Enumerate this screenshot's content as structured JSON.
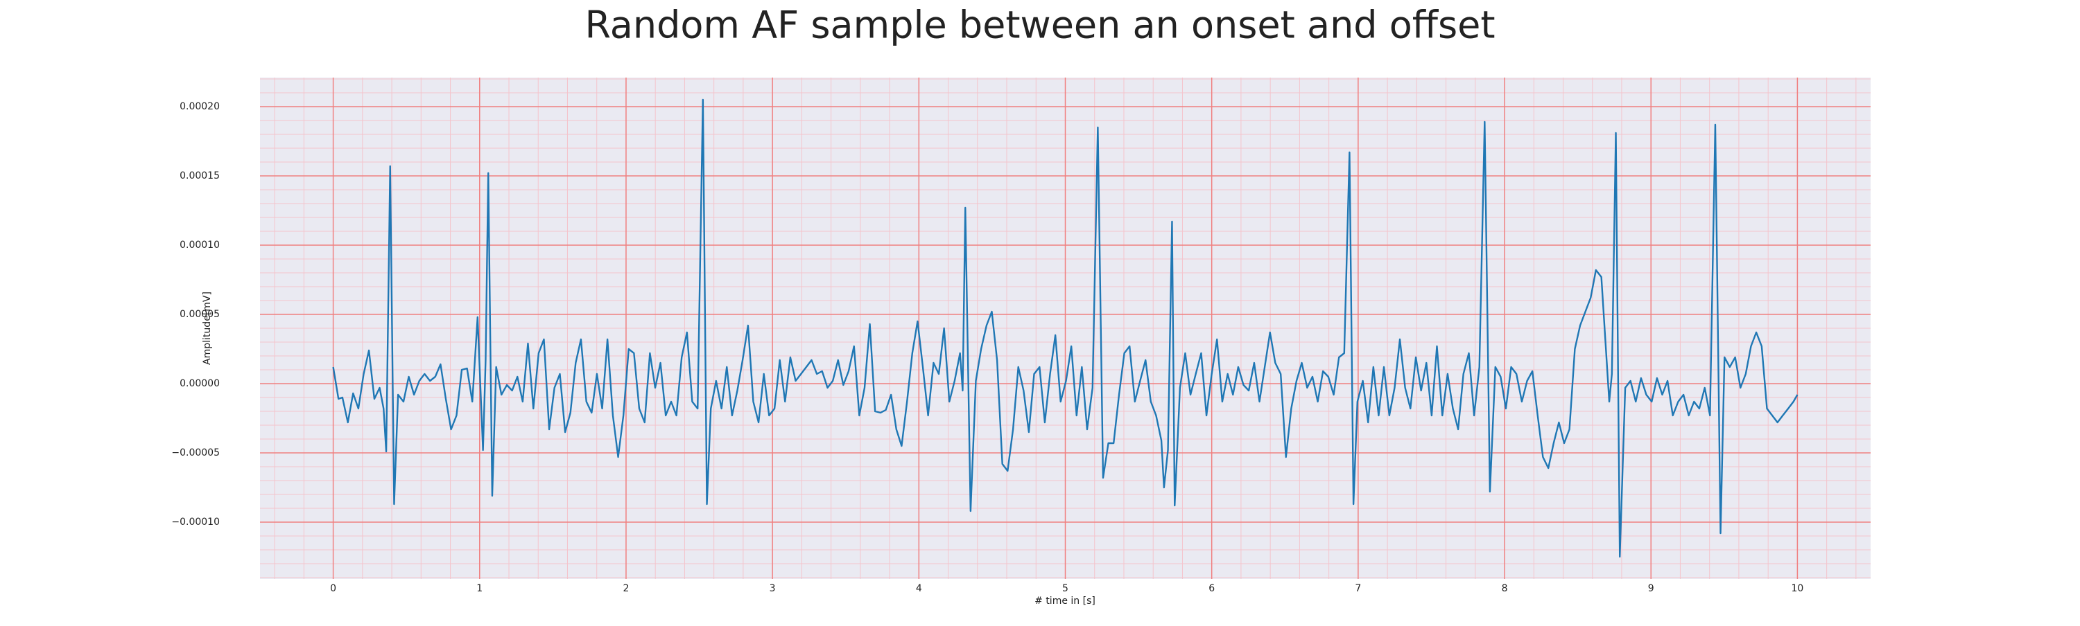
{
  "chart_data": {
    "type": "line",
    "title": "Random AF sample between an onset and offset",
    "xlabel": "# time in [s]",
    "ylabel": "Amplitude[mV]",
    "color": "#1f77b4",
    "grid": true,
    "background": "#eaeaf2",
    "grid_color": "#f08080",
    "minor_grid_color": "#f4c4cc",
    "xlim": [
      -0.5,
      10.5
    ],
    "ylim": [
      -0.000141,
      0.000221
    ],
    "xticks": [
      0,
      1,
      2,
      3,
      4,
      5,
      6,
      7,
      8,
      9,
      10
    ],
    "yticks": [
      {
        "value": -0.0001,
        "label": "−0.00010"
      },
      {
        "value": -5e-05,
        "label": "−0.00005"
      },
      {
        "value": 0,
        "label": "0.00000"
      },
      {
        "value": 5e-05,
        "label": "0.00005"
      },
      {
        "value": 0.0001,
        "label": "0.00010"
      },
      {
        "value": 0.00015,
        "label": "0.00015"
      },
      {
        "value": 0.0002,
        "label": "0.00020"
      }
    ],
    "xminorticks": [
      -0.4,
      -0.2,
      0.2,
      0.4,
      0.6,
      0.8,
      1.2,
      1.4,
      1.6,
      1.8,
      2.2,
      2.4,
      2.6,
      2.8,
      3.2,
      3.4,
      3.6,
      3.8,
      4.2,
      4.4,
      4.6,
      4.8,
      5.2,
      5.4,
      5.6,
      5.8,
      6.2,
      6.4,
      6.6,
      6.8,
      7.2,
      7.4,
      7.6,
      7.8,
      8.2,
      8.4,
      8.6,
      8.8,
      9.2,
      9.4,
      9.6,
      9.8,
      10.2,
      10.4
    ],
    "yminorticks": [
      -0.00014,
      -0.00013,
      -0.00012,
      -0.00011,
      -9e-05,
      -8e-05,
      -7e-05,
      -6e-05,
      -4e-05,
      -3e-05,
      -2e-05,
      -1e-05,
      1e-05,
      2e-05,
      3e-05,
      4e-05,
      6e-05,
      7e-05,
      8e-05,
      9e-05,
      0.00011,
      0.00012,
      0.00013,
      0.00014,
      0.00016,
      0.00017,
      0.00018,
      0.00019,
      0.00021,
      0.00022
    ],
    "x": [
      0,
      0.036,
      0.063,
      0.1,
      0.136,
      0.172,
      0.208,
      0.244,
      0.281,
      0.317,
      0.344,
      0.362,
      0.389,
      0.416,
      0.443,
      0.48,
      0.516,
      0.552,
      0.588,
      0.624,
      0.661,
      0.697,
      0.733,
      0.769,
      0.805,
      0.842,
      0.878,
      0.914,
      0.95,
      0.986,
      1.023,
      1.041,
      1.059,
      1.086,
      1.113,
      1.149,
      1.186,
      1.222,
      1.258,
      1.294,
      1.33,
      1.367,
      1.403,
      1.439,
      1.475,
      1.511,
      1.548,
      1.584,
      1.62,
      1.656,
      1.692,
      1.729,
      1.765,
      1.801,
      1.837,
      1.873,
      1.91,
      1.946,
      1.982,
      2.018,
      2.054,
      2.09,
      2.127,
      2.163,
      2.199,
      2.235,
      2.271,
      2.308,
      2.344,
      2.38,
      2.416,
      2.452,
      2.489,
      2.525,
      2.552,
      2.579,
      2.615,
      2.652,
      2.688,
      2.724,
      2.76,
      2.796,
      2.833,
      2.869,
      2.905,
      2.941,
      2.977,
      3.014,
      3.05,
      3.086,
      3.122,
      3.158,
      3.195,
      3.231,
      3.267,
      3.303,
      3.339,
      3.376,
      3.412,
      3.448,
      3.484,
      3.52,
      3.557,
      3.593,
      3.629,
      3.665,
      3.701,
      3.738,
      3.774,
      3.81,
      3.846,
      3.882,
      3.919,
      3.955,
      3.991,
      4.027,
      4.063,
      4.1,
      4.136,
      4.172,
      4.208,
      4.244,
      4.281,
      4.299,
      4.317,
      4.353,
      4.389,
      4.425,
      4.462,
      4.498,
      4.534,
      4.57,
      4.606,
      4.643,
      4.679,
      4.715,
      4.751,
      4.787,
      4.824,
      4.86,
      4.896,
      4.932,
      4.968,
      5.005,
      5.041,
      5.077,
      5.113,
      5.149,
      5.186,
      5.222,
      5.258,
      5.294,
      5.33,
      5.367,
      5.403,
      5.439,
      5.475,
      5.511,
      5.548,
      5.584,
      5.62,
      5.656,
      5.674,
      5.701,
      5.729,
      5.747,
      5.783,
      5.819,
      5.855,
      5.891,
      5.928,
      5.964,
      6.0,
      6.036,
      6.072,
      6.109,
      6.145,
      6.181,
      6.217,
      6.253,
      6.29,
      6.326,
      6.362,
      6.398,
      6.434,
      6.471,
      6.507,
      6.543,
      6.579,
      6.615,
      6.652,
      6.688,
      6.724,
      6.76,
      6.796,
      6.833,
      6.869,
      6.905,
      6.941,
      6.968,
      6.995,
      7.032,
      7.068,
      7.104,
      7.14,
      7.176,
      7.213,
      7.249,
      7.285,
      7.321,
      7.357,
      7.394,
      7.43,
      7.466,
      7.502,
      7.538,
      7.575,
      7.611,
      7.647,
      7.683,
      7.719,
      7.756,
      7.792,
      7.828,
      7.864,
      7.9,
      7.937,
      7.973,
      8.009,
      8.045,
      8.081,
      8.118,
      8.154,
      8.19,
      8.226,
      8.262,
      8.299,
      8.335,
      8.371,
      8.407,
      8.443,
      8.48,
      8.516,
      8.552,
      8.588,
      8.624,
      8.661,
      8.679,
      8.697,
      8.715,
      8.733,
      8.76,
      8.787,
      8.824,
      8.86,
      8.896,
      8.932,
      8.968,
      9.005,
      9.041,
      9.077,
      9.113,
      9.149,
      9.186,
      9.222,
      9.258,
      9.294,
      9.33,
      9.367,
      9.403,
      9.439,
      9.475,
      9.502,
      9.538,
      9.575,
      9.611,
      9.647,
      9.683,
      9.719,
      9.756,
      9.792,
      9.828,
      9.864,
      9.9,
      9.937,
      9.973,
      10.0
    ],
    "values": [
      1.2e-05,
      -1.1e-05,
      -1e-05,
      -2.8e-05,
      -7e-06,
      -1.8e-05,
      7e-06,
      2.4e-05,
      -1.1e-05,
      -3e-06,
      -1.8e-05,
      -4.9e-05,
      0.000157,
      -8.7e-05,
      -8e-06,
      -1.3e-05,
      5e-06,
      -8e-06,
      2e-06,
      7e-06,
      2e-06,
      5e-06,
      1.4e-05,
      -1.1e-05,
      -3.3e-05,
      -2.3e-05,
      1e-05,
      1.1e-05,
      -1.3e-05,
      4.8e-05,
      -4.8e-05,
      1.7e-05,
      0.000152,
      -8.1e-05,
      1.2e-05,
      -8e-06,
      -1e-06,
      -5e-06,
      5e-06,
      -1.3e-05,
      2.9e-05,
      -1.8e-05,
      2.2e-05,
      3.2e-05,
      -3.3e-05,
      -3e-06,
      7e-06,
      -3.5e-05,
      -2.1e-05,
      1.5e-05,
      3.2e-05,
      -1.3e-05,
      -2.1e-05,
      7e-06,
      -1.8e-05,
      3.2e-05,
      -2.3e-05,
      -5.3e-05,
      -2.3e-05,
      2.5e-05,
      2.2e-05,
      -1.8e-05,
      -2.8e-05,
      2.2e-05,
      -3e-06,
      1.5e-05,
      -2.3e-05,
      -1.3e-05,
      -2.3e-05,
      1.9e-05,
      3.7e-05,
      -1.3e-05,
      -1.8e-05,
      0.000205,
      -8.7e-05,
      -1.8e-05,
      2e-06,
      -1.8e-05,
      1.2e-05,
      -2.3e-05,
      -5e-06,
      1.7e-05,
      4.2e-05,
      -1.3e-05,
      -2.8e-05,
      7e-06,
      -2.3e-05,
      -1.8e-05,
      1.7e-05,
      -1.3e-05,
      1.9e-05,
      2e-06,
      7e-06,
      1.2e-05,
      1.7e-05,
      7e-06,
      9e-06,
      -3e-06,
      2e-06,
      1.7e-05,
      -1e-06,
      9e-06,
      2.7e-05,
      -2.3e-05,
      -3e-06,
      4.3e-05,
      -2e-05,
      -2.1e-05,
      -1.9e-05,
      -8e-06,
      -3.3e-05,
      -4.5e-05,
      -1.3e-05,
      2.2e-05,
      4.5e-05,
      1.2e-05,
      -2.3e-05,
      1.5e-05,
      7e-06,
      4e-05,
      -1.3e-05,
      2e-06,
      2.2e-05,
      -5e-06,
      0.000127,
      -9.2e-05,
      2e-06,
      2.5e-05,
      4.2e-05,
      5.2e-05,
      1.7e-05,
      -5.8e-05,
      -6.3e-05,
      -3.3e-05,
      1.2e-05,
      -5e-06,
      -3.5e-05,
      7e-06,
      1.2e-05,
      -2.8e-05,
      7e-06,
      3.5e-05,
      -1.3e-05,
      2e-06,
      2.7e-05,
      -2.3e-05,
      1.2e-05,
      -3.3e-05,
      -3e-06,
      0.000185,
      -6.8e-05,
      -4.3e-05,
      -4.3e-05,
      -8e-06,
      2.2e-05,
      2.7e-05,
      -1.3e-05,
      2e-06,
      1.7e-05,
      -1.3e-05,
      -2.3e-05,
      -4.1e-05,
      -7.5e-05,
      -4.8e-05,
      0.000117,
      -8.8e-05,
      -3e-06,
      2.2e-05,
      -8e-06,
      7e-06,
      2.2e-05,
      -2.3e-05,
      7e-06,
      3.2e-05,
      -1.3e-05,
      7e-06,
      -8e-06,
      1.2e-05,
      -1e-06,
      -5e-06,
      1.5e-05,
      -1.3e-05,
      1.2e-05,
      3.7e-05,
      1.5e-05,
      7e-06,
      -5.3e-05,
      -1.8e-05,
      2e-06,
      1.5e-05,
      -3e-06,
      5e-06,
      -1.3e-05,
      9e-06,
      5e-06,
      -8e-06,
      1.9e-05,
      2.2e-05,
      0.000167,
      -8.7e-05,
      -1.3e-05,
      2e-06,
      -2.8e-05,
      1.2e-05,
      -2.3e-05,
      1.2e-05,
      -2.3e-05,
      -3e-06,
      3.2e-05,
      -3e-06,
      -1.8e-05,
      1.9e-05,
      -5e-06,
      1.5e-05,
      -2.3e-05,
      2.7e-05,
      -2.3e-05,
      7e-06,
      -1.8e-05,
      -3.3e-05,
      7e-06,
      2.2e-05,
      -2.3e-05,
      1.2e-05,
      0.000189,
      -7.8e-05,
      1.2e-05,
      5e-06,
      -1.8e-05,
      1.2e-05,
      7e-06,
      -1.3e-05,
      2e-06,
      9e-06,
      -2.3e-05,
      -5.3e-05,
      -6.1e-05,
      -4.3e-05,
      -2.8e-05,
      -4.3e-05,
      -3.3e-05,
      2.5e-05,
      4.2e-05,
      5.2e-05,
      6.2e-05,
      8.2e-05,
      7.7e-05,
      4.7e-05,
      1.7e-05,
      -1.3e-05,
      7e-06,
      0.000181,
      -0.000125,
      -3e-06,
      2e-06,
      -1.3e-05,
      4e-06,
      -8e-06,
      -1.3e-05,
      4e-06,
      -8e-06,
      2e-06,
      -2.3e-05,
      -1.3e-05,
      -8e-06,
      -2.3e-05,
      -1.3e-05,
      -1.8e-05,
      -3e-06,
      -2.3e-05,
      0.000187,
      -0.000108,
      1.9e-05,
      1.2e-05,
      1.9e-05,
      -3e-06,
      7e-06,
      2.7e-05,
      3.7e-05,
      2.7e-05,
      -1.8e-05,
      -2.3e-05,
      -2.8e-05,
      -2.3e-05,
      -1.8e-05,
      -1.3e-05,
      -8e-06
    ]
  }
}
